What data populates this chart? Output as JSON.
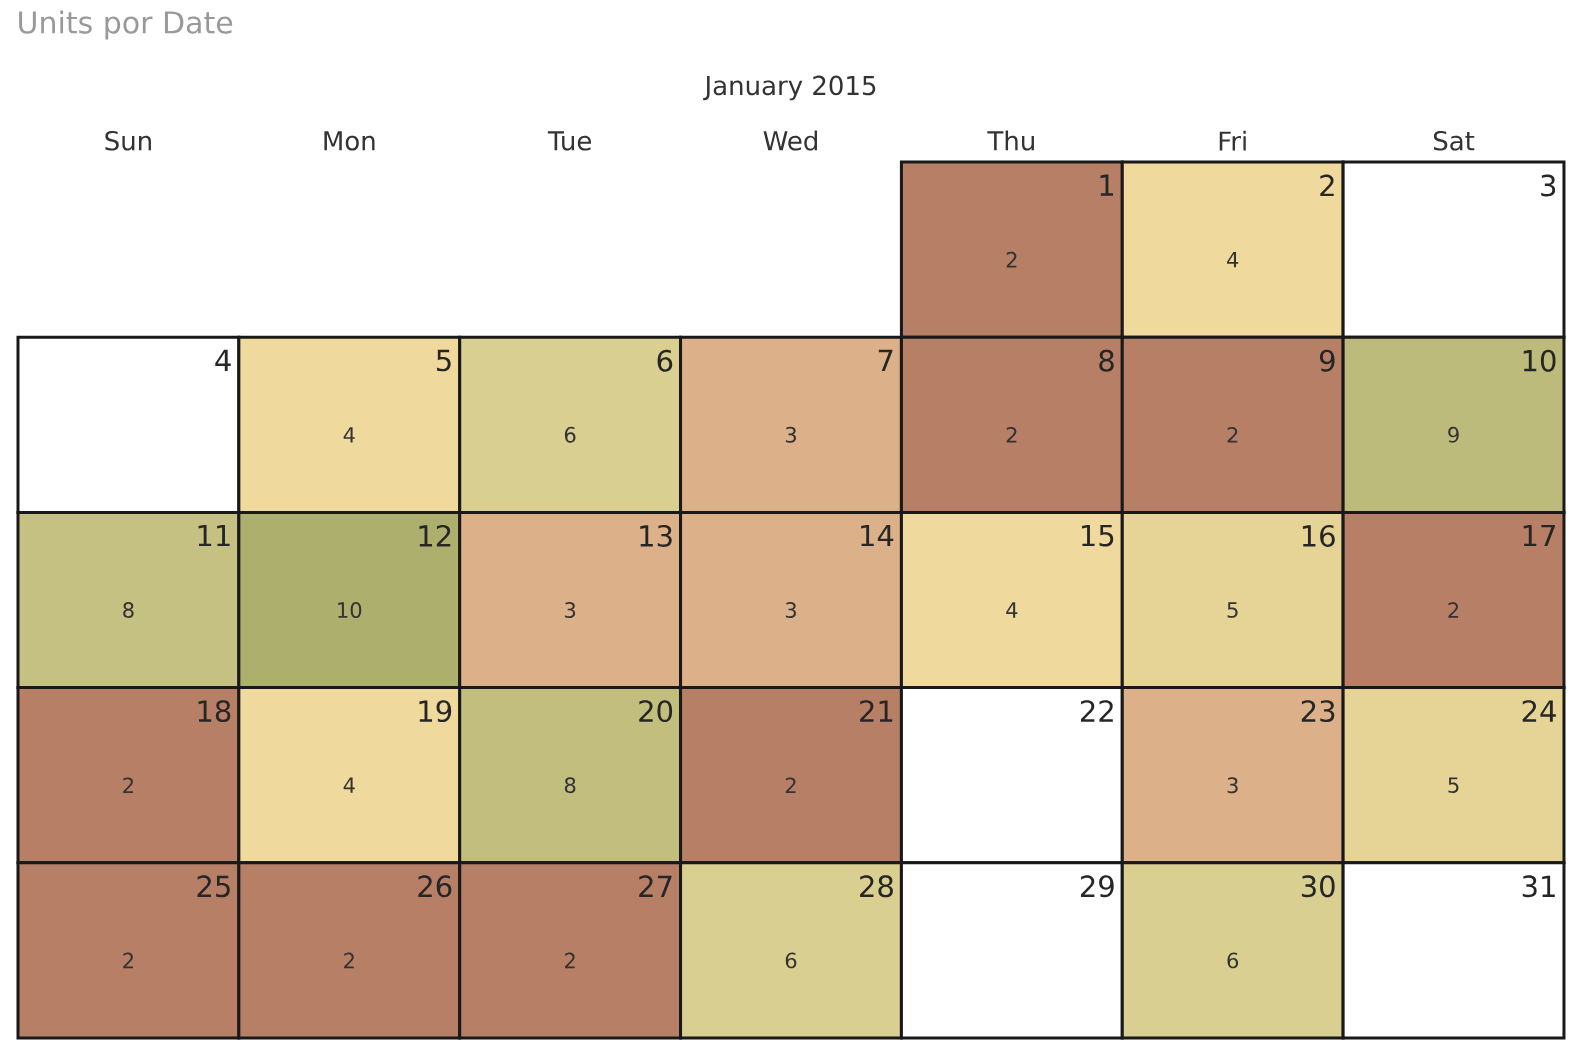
{
  "chart_data": {
    "type": "heatmap",
    "title": "Units por Date",
    "subtitle": "January 2015",
    "categories": [
      "Sun",
      "Mon",
      "Tue",
      "Wed",
      "Thu",
      "Fri",
      "Sat"
    ],
    "y_categories": [
      null,
      null,
      null,
      null,
      null
    ],
    "cells": [
      [
        null,
        null,
        null,
        null,
        2,
        4,
        null
      ],
      [
        null,
        4,
        6,
        3,
        2,
        2,
        9
      ],
      [
        8,
        10,
        3,
        3,
        4,
        5,
        2
      ],
      [
        2,
        4,
        8,
        2,
        null,
        3,
        5
      ],
      [
        2,
        2,
        2,
        6,
        null,
        6,
        null
      ]
    ],
    "colors": [
      [
        null,
        null,
        null,
        null,
        "#b67f66",
        "#f0d99c",
        "#ffffff"
      ],
      [
        "#ffffff",
        "#f0d99c",
        "#d9cf91",
        "#dcb088",
        "#b67f66",
        "#b67f66",
        "#bdbb7b"
      ],
      [
        "#c4c182",
        "#adb06c",
        "#dcb088",
        "#dcb088",
        "#f0d99c",
        "#e6d496",
        "#b67f66"
      ],
      [
        "#b67f66",
        "#f0d99c",
        "#c2bf7e",
        "#b67f66",
        "#ffffff",
        "#dcb088",
        "#e6d496"
      ],
      [
        "#b67f66",
        "#b67f66",
        "#b67f66",
        "#d9cf91",
        "#ffffff",
        "#d9cf91",
        "#ffffff"
      ]
    ],
    "annotations": [
      "1",
      "2",
      "3",
      "4",
      "5",
      "6",
      "7",
      "8",
      "9",
      "10",
      "11",
      "12",
      "13",
      "14",
      "15",
      "16",
      "17",
      "18",
      "19",
      "20",
      "21",
      "22",
      "23",
      "24",
      "25",
      "26",
      "27",
      "28",
      "29",
      "30",
      "31"
    ],
    "data_labels": true
  }
}
